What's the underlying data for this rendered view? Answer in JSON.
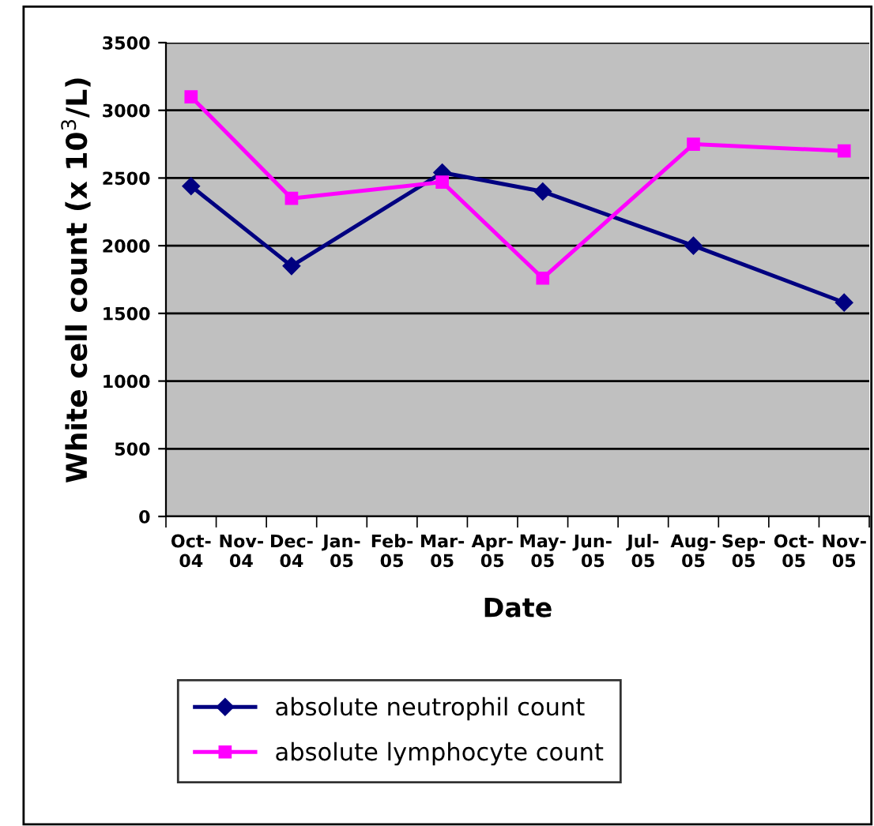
{
  "chart_data": {
    "type": "line",
    "xlabel": "Date",
    "ylabel": "White cell count (x 10$^{3}$/L)",
    "categories": [
      "Oct-\n04",
      "Nov-\n04",
      "Dec-\n04",
      "Jan-\n05",
      "Feb-\n05",
      "Mar-\n05",
      "Apr-\n05",
      "May-\n05",
      "Jun-\n05",
      "Jul-\n05",
      "Aug-\n05",
      "Sep-\n05",
      "Oct-\n05",
      "Nov-\n05"
    ],
    "series": [
      {
        "name": "absolute neutrophil count",
        "color": "#000080",
        "marker": "diamond",
        "values": [
          2440,
          null,
          1850,
          null,
          null,
          2540,
          null,
          2400,
          null,
          null,
          2000,
          null,
          null,
          1580
        ]
      },
      {
        "name": "absolute lymphocyte count",
        "color": "#ff00ff",
        "marker": "square",
        "values": [
          3100,
          null,
          2350,
          null,
          null,
          2470,
          null,
          1760,
          null,
          null,
          2750,
          null,
          null,
          2700
        ]
      }
    ],
    "ylim": [
      0,
      3500
    ],
    "yticks": [
      0,
      500,
      1000,
      1500,
      2000,
      2500,
      3000,
      3500
    ],
    "grid": "y",
    "legend": "bottom"
  }
}
